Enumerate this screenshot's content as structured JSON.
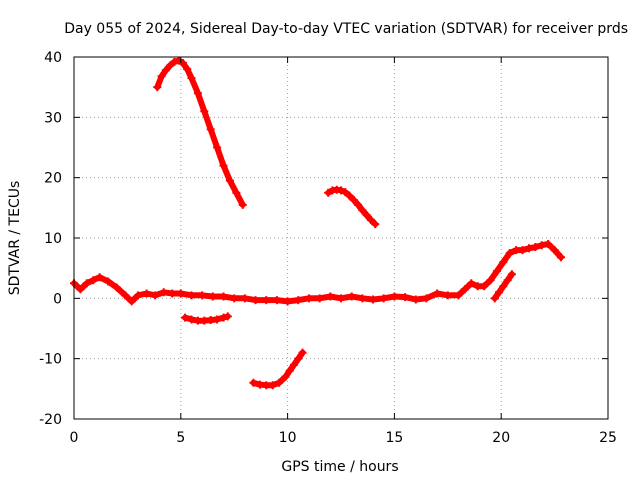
{
  "chart_data": {
    "type": "scatter",
    "title": "Day 055 of 2024, Sidereal Day-to-day VTEC variation (SDTVAR) for receiver prds",
    "xlabel": "GPS time / hours",
    "ylabel": "SDTVAR / TECUs",
    "xlim": [
      0,
      25
    ],
    "ylim": [
      -20,
      40
    ],
    "xticks": [
      0,
      5,
      10,
      15,
      20,
      25
    ],
    "yticks": [
      -20,
      -10,
      0,
      10,
      20,
      30,
      40
    ],
    "grid": true,
    "marker": "plus",
    "color": "#ff0000",
    "series": [
      {
        "name": "main-trace",
        "x": [
          0.0,
          0.3,
          0.6,
          0.9,
          1.2,
          1.6,
          2.0,
          2.4,
          2.7,
          3.0,
          3.4,
          3.8,
          4.2,
          4.6,
          5.0,
          5.5,
          6.0,
          6.5,
          7.0,
          7.5,
          8.0,
          8.5,
          9.0,
          9.5,
          10.0,
          10.5,
          11.0,
          11.5,
          12.0,
          12.5,
          13.0,
          13.5,
          14.0,
          14.5,
          15.0,
          15.5,
          16.0,
          16.5,
          17.0,
          17.5,
          18.0,
          18.3,
          18.6,
          18.9,
          19.2,
          19.5,
          19.8,
          20.1,
          20.4,
          20.7,
          21.0,
          21.3,
          21.6,
          21.9,
          22.2,
          22.5,
          22.8
        ],
        "y": [
          2.5,
          1.5,
          2.5,
          3.0,
          3.5,
          2.8,
          1.8,
          0.5,
          -0.5,
          0.5,
          0.8,
          0.5,
          1.0,
          0.8,
          0.8,
          0.5,
          0.5,
          0.3,
          0.3,
          0.0,
          0.0,
          -0.3,
          -0.3,
          -0.3,
          -0.5,
          -0.3,
          0.0,
          0.0,
          0.3,
          0.0,
          0.3,
          0.0,
          -0.2,
          0.0,
          0.3,
          0.2,
          -0.2,
          0.0,
          0.8,
          0.5,
          0.5,
          1.5,
          2.5,
          2.0,
          2.0,
          3.0,
          4.5,
          6.0,
          7.5,
          8.0,
          8.0,
          8.3,
          8.5,
          8.8,
          9.0,
          8.0,
          6.8
        ]
      },
      {
        "name": "arc-high",
        "x": [
          3.9,
          4.1,
          4.3,
          4.5,
          4.7,
          4.9,
          5.1,
          5.3,
          5.5,
          5.8,
          6.1,
          6.4,
          6.7,
          7.0,
          7.3,
          7.6,
          7.9
        ],
        "y": [
          35.0,
          36.8,
          37.8,
          38.6,
          39.2,
          39.4,
          39.0,
          38.0,
          36.5,
          34.0,
          31.0,
          28.0,
          25.0,
          22.0,
          19.5,
          17.5,
          15.5
        ]
      },
      {
        "name": "arc-mid",
        "x": [
          11.9,
          12.1,
          12.3,
          12.5,
          12.7,
          12.9,
          13.1,
          13.3,
          13.5,
          13.7,
          13.9,
          14.1
        ],
        "y": [
          17.5,
          17.9,
          18.0,
          17.9,
          17.6,
          17.0,
          16.3,
          15.5,
          14.6,
          13.8,
          13.0,
          12.3
        ]
      },
      {
        "name": "segment-neg-small",
        "x": [
          5.2,
          5.5,
          5.8,
          6.1,
          6.4,
          6.7,
          7.0,
          7.2
        ],
        "y": [
          -3.2,
          -3.5,
          -3.7,
          -3.7,
          -3.6,
          -3.5,
          -3.2,
          -3.0
        ]
      },
      {
        "name": "segment-neg-large",
        "x": [
          8.4,
          8.7,
          9.0,
          9.3,
          9.6,
          9.9,
          10.1,
          10.3,
          10.5,
          10.7
        ],
        "y": [
          -14.0,
          -14.3,
          -14.4,
          -14.4,
          -14.0,
          -13.0,
          -12.0,
          -11.0,
          -10.0,
          -9.0
        ]
      },
      {
        "name": "segment-late-rise",
        "x": [
          19.7,
          19.9,
          20.1,
          20.3,
          20.5
        ],
        "y": [
          0.0,
          1.0,
          2.0,
          3.0,
          4.0
        ]
      }
    ]
  }
}
